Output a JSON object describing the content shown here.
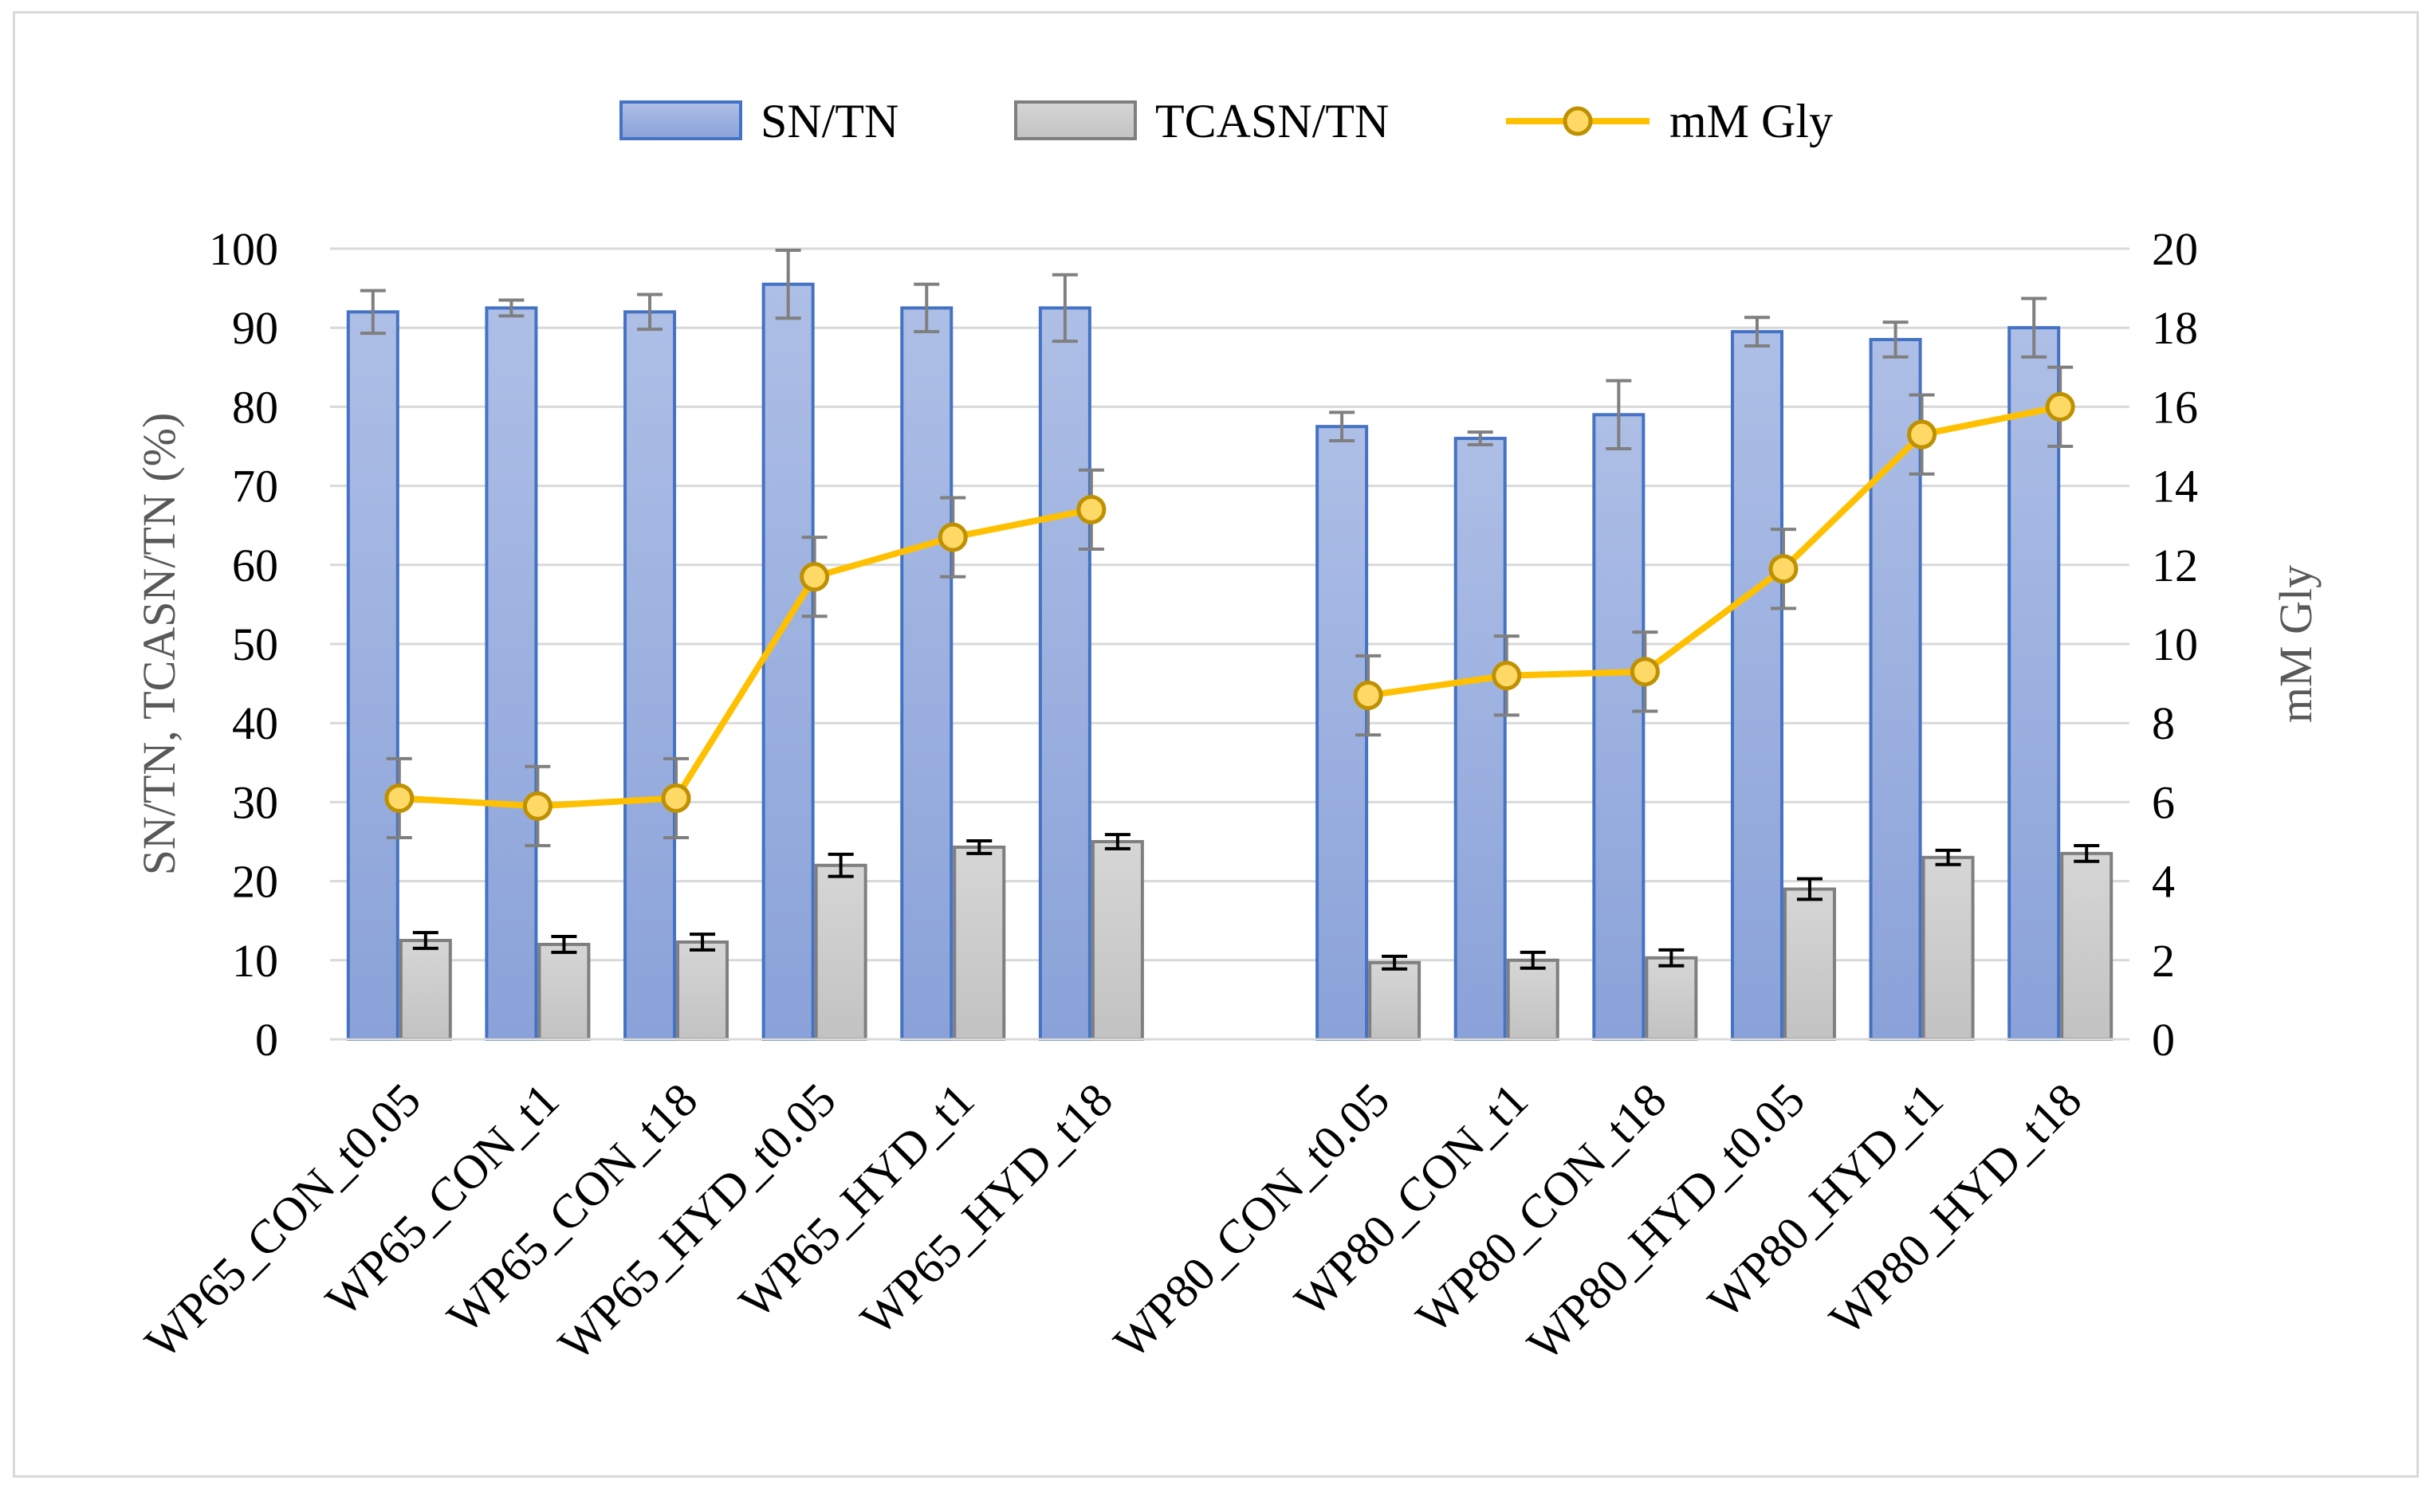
{
  "chart_data": {
    "type": "bar",
    "title": "",
    "categories": [
      "WP65_CON_t0.05",
      "WP65_CON_t1",
      "WP65_CON_t18",
      "WP65_HYD_t0.05",
      "WP65_HYD_t1",
      "WP65_HYD_t18",
      "",
      "WP80_CON_t0.05",
      "WP80_CON_t1",
      "WP80_CON_t18",
      "WP80_HYD_t0.05",
      "WP80_HYD_t1",
      "WP80_HYD_t18"
    ],
    "series": [
      {
        "name": "SN/TN",
        "type": "bar",
        "axis": "left",
        "color": "#8faadc",
        "edge": "#4472c4",
        "values": [
          92,
          92.5,
          92,
          95.5,
          92.5,
          92.5,
          null,
          77.5,
          76,
          79,
          89.5,
          88.5,
          90
        ],
        "errors": [
          2.7,
          1.0,
          2.2,
          4.3,
          3.0,
          4.2,
          null,
          1.8,
          0.8,
          4.3,
          1.8,
          2.2,
          3.7
        ]
      },
      {
        "name": "TCASN/TN",
        "type": "bar",
        "axis": "left",
        "color": "#c9c9c9",
        "edge": "#7f7f7f",
        "values": [
          12.5,
          12,
          12.3,
          22,
          24.3,
          25,
          null,
          9.7,
          10,
          10.3,
          19,
          23,
          23.5
        ],
        "errors": [
          1.0,
          1.0,
          1.0,
          1.4,
          0.8,
          0.9,
          null,
          0.8,
          1.0,
          1.0,
          1.3,
          0.9,
          1.0
        ]
      },
      {
        "name": "mM Gly",
        "type": "line",
        "axis": "right",
        "color": "#ffc000",
        "marker_fill": "#ffd966",
        "marker_edge": "#bf9000",
        "values": [
          6.1,
          5.9,
          6.1,
          11.7,
          12.7,
          13.4,
          null,
          8.7,
          9.2,
          9.3,
          11.9,
          15.3,
          16.0
        ],
        "errors": [
          1.0,
          1.0,
          1.0,
          1.0,
          1.0,
          1.0,
          null,
          1.0,
          1.0,
          1.0,
          1.0,
          1.0,
          1.0
        ]
      }
    ],
    "ylabel": "SN/TN, TCASN/TN (%)",
    "y2label": "mM Gly",
    "ylim": [
      0,
      100
    ],
    "y2lim": [
      0,
      20
    ],
    "yticks": [
      "0",
      "10",
      "20",
      "30",
      "40",
      "50",
      "60",
      "70",
      "80",
      "90",
      "100"
    ],
    "y2ticks": [
      "0",
      "2",
      "4",
      "6",
      "8",
      "10",
      "12",
      "14",
      "16",
      "18",
      "20"
    ],
    "grid": true,
    "legend": "top-center"
  }
}
